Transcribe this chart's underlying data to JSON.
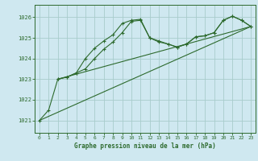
{
  "title": "Graphe pression niveau de la mer (hPa)",
  "background_color": "#cfe8f0",
  "grid_color": "#a8cccc",
  "line_color": "#2d6a2d",
  "xlim": [
    -0.5,
    23.5
  ],
  "ylim": [
    1020.4,
    1026.6
  ],
  "yticks": [
    1021,
    1022,
    1023,
    1024,
    1025,
    1026
  ],
  "xticks": [
    0,
    1,
    2,
    3,
    4,
    5,
    6,
    7,
    8,
    9,
    10,
    11,
    12,
    13,
    14,
    15,
    16,
    17,
    18,
    19,
    20,
    21,
    22,
    23
  ],
  "series_1_x": [
    0,
    1,
    2,
    3,
    4,
    5,
    6,
    7,
    8,
    9,
    10,
    11,
    12,
    13,
    14,
    15,
    16,
    17,
    18,
    19,
    20,
    21,
    22,
    23
  ],
  "series_1_y": [
    1021.0,
    1021.5,
    1023.0,
    1023.1,
    1023.3,
    1024.0,
    1024.5,
    1024.85,
    1025.15,
    1025.7,
    1025.85,
    1025.9,
    1025.0,
    1024.85,
    1024.7,
    1024.55,
    1024.7,
    1025.05,
    1025.1,
    1025.25,
    1025.85,
    1026.05,
    1025.85,
    1025.55
  ],
  "series_2_x": [
    2,
    3,
    4,
    5,
    6,
    7,
    8,
    9,
    10,
    11,
    12,
    13,
    14,
    15,
    16,
    17,
    18,
    19,
    20,
    21,
    22,
    23
  ],
  "series_2_y": [
    1023.0,
    1023.1,
    1023.3,
    1023.5,
    1024.0,
    1024.45,
    1024.8,
    1025.25,
    1025.8,
    1025.85,
    1025.0,
    1024.8,
    1024.7,
    1024.55,
    1024.7,
    1025.05,
    1025.1,
    1025.25,
    1025.85,
    1026.05,
    1025.85,
    1025.55
  ],
  "trend1_x": [
    0,
    23
  ],
  "trend1_y": [
    1021.0,
    1025.55
  ],
  "trend2_x": [
    2,
    23
  ],
  "trend2_y": [
    1023.0,
    1025.55
  ]
}
